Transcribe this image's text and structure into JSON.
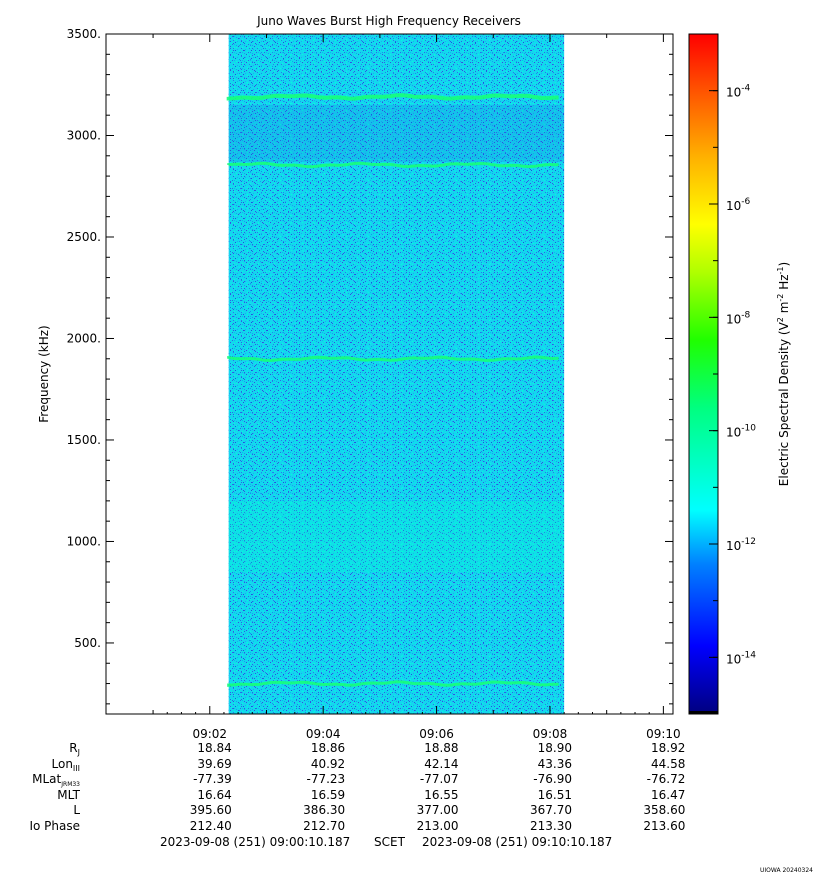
{
  "chart_data": {
    "type": "heatmap",
    "title": "Juno Waves Burst High Frequency Receivers",
    "ylabel": "Frequency (kHz)",
    "ylim": [
      150,
      3500
    ],
    "yticks": [
      500,
      1000,
      1500,
      2000,
      2500,
      3000,
      3500
    ],
    "ytick_labels": [
      "500.",
      "1000.",
      "1500.",
      "2000.",
      "2500.",
      "3000.",
      "3500."
    ],
    "xrange": [
      "09:00:10.187",
      "09:10:10.187"
    ],
    "xticks": [
      "09:02",
      "09:04",
      "09:06",
      "09:08",
      "09:10"
    ],
    "data_time_range": [
      "09:02:20",
      "09:08:15"
    ],
    "background_level": "1e-12",
    "emission_lines": [
      {
        "frequency_khz": 3190,
        "level": "1e-11"
      },
      {
        "frequency_khz": 2855,
        "level": "1e-11"
      },
      {
        "frequency_khz": 1900,
        "level": "1e-11"
      },
      {
        "frequency_khz": 300,
        "level": "1e-11"
      }
    ],
    "colorbar": {
      "label_main": "Electric Spectral Density (V",
      "label_sup1": "2",
      "label_mid": " m",
      "label_sup2": "-2",
      "label_mid2": " Hz",
      "label_sup3": "-1",
      "label_end": ")",
      "scale": "log",
      "range": [
        1e-15,
        0.001
      ],
      "tick_base": "10",
      "tick_exponents": [
        "-4",
        "-6",
        "-8",
        "-10",
        "-12",
        "-14"
      ],
      "colormap": [
        "#00008f",
        "#0000ff",
        "#00a0ff",
        "#00ffff",
        "#00ff60",
        "#70ff00",
        "#ffff00",
        "#ffa000",
        "#ff4000",
        "#ff0000"
      ]
    }
  },
  "ephemeris": {
    "rows": [
      {
        "label": "R",
        "sub": "J",
        "values": [
          "18.84",
          "18.86",
          "18.88",
          "18.90",
          "18.92"
        ]
      },
      {
        "label": "Lon",
        "sub": "III",
        "values": [
          "39.69",
          "40.92",
          "42.14",
          "43.36",
          "44.58"
        ]
      },
      {
        "label": "MLat",
        "sub": "JRM33",
        "values": [
          "-77.39",
          "-77.23",
          "-77.07",
          "-76.90",
          "-76.72"
        ]
      },
      {
        "label": "MLT",
        "sub": "",
        "values": [
          "16.64",
          "16.59",
          "16.55",
          "16.51",
          "16.47"
        ]
      },
      {
        "label": "L",
        "sub": "",
        "values": [
          "395.60",
          "386.30",
          "377.00",
          "367.70",
          "358.60"
        ]
      },
      {
        "label": "Io Phase",
        "sub": "",
        "values": [
          "212.40",
          "212.70",
          "213.00",
          "213.30",
          "213.60"
        ]
      }
    ]
  },
  "footer": {
    "start": "2023-09-08 (251) 09:00:10.187",
    "label": "SCET",
    "end": "2023-09-08 (251) 09:10:10.187"
  },
  "stamp": "UIOWA 20240324"
}
